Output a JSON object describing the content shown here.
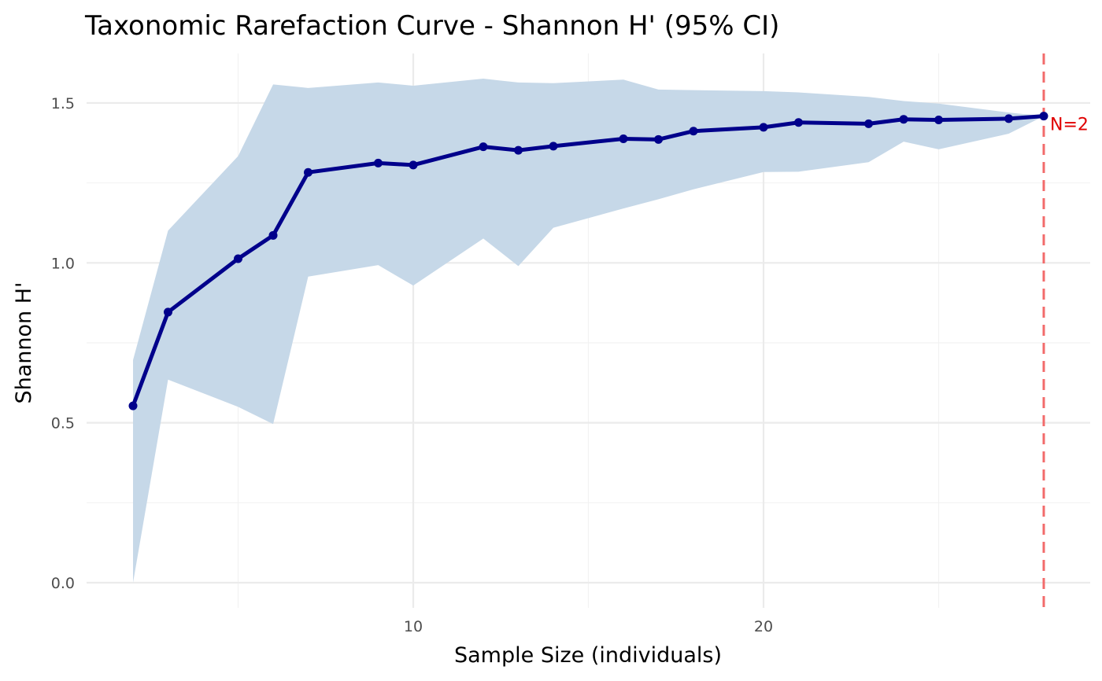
{
  "chart_data": {
    "type": "line",
    "title": "Taxonomic Rarefaction Curve - Shannon H' (95% CI)",
    "xlabel": "Sample Size (individuals)",
    "ylabel": "Shannon H'",
    "xlim": [
      2,
      28
    ],
    "ylim": [
      0,
      1.6
    ],
    "x_ticks": [
      10,
      20
    ],
    "x_tick_labels": [
      "10",
      "20"
    ],
    "x_minor_ticks": [
      5,
      15,
      25
    ],
    "y_ticks": [
      0.0,
      0.5,
      1.0,
      1.5
    ],
    "y_tick_labels": [
      "0.0",
      "0.5",
      "1.0",
      "1.5"
    ],
    "y_minor_ticks": [
      0.25,
      0.75,
      1.25
    ],
    "grid": true,
    "series": [
      {
        "name": "Shannon H'",
        "color": "#00008b",
        "x": [
          2,
          3,
          5,
          6,
          7,
          9,
          10,
          12,
          13,
          14,
          16,
          17,
          18,
          20,
          21,
          23,
          24,
          25,
          27,
          28
        ],
        "y": [
          0.553,
          0.846,
          1.013,
          1.086,
          1.283,
          1.312,
          1.306,
          1.363,
          1.352,
          1.365,
          1.388,
          1.386,
          1.412,
          1.424,
          1.439,
          1.435,
          1.449,
          1.447,
          1.451,
          1.459
        ],
        "ci_lower": [
          0.0,
          0.635,
          0.55,
          0.496,
          0.957,
          0.993,
          0.929,
          1.076,
          0.99,
          1.11,
          1.17,
          1.199,
          1.23,
          1.284,
          1.285,
          1.315,
          1.379,
          1.355,
          1.404,
          1.459
        ],
        "ci_upper": [
          0.696,
          1.101,
          1.334,
          1.558,
          1.547,
          1.564,
          1.554,
          1.576,
          1.564,
          1.562,
          1.573,
          1.542,
          1.54,
          1.537,
          1.533,
          1.519,
          1.506,
          1.498,
          1.47,
          1.459
        ],
        "ci_color": "#c6d8e8"
      }
    ],
    "reference_line": {
      "x": 28,
      "color": "#f26b6b",
      "style": "dashed"
    },
    "annotations": [
      {
        "text": "N=2",
        "x": 28,
        "y": 1.459,
        "color": "#e00000"
      }
    ]
  }
}
